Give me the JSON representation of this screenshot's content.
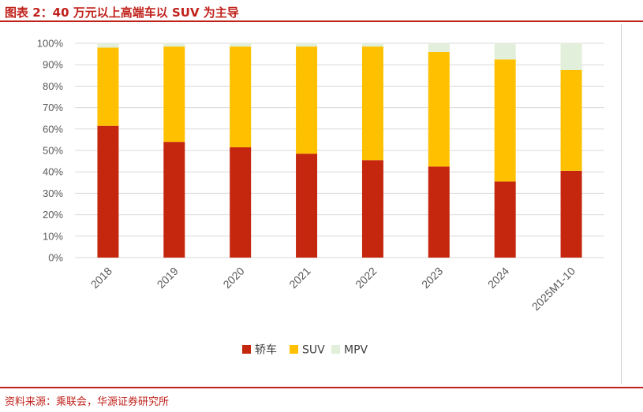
{
  "header": {
    "title": "图表 2：40 万元以上高端车以 SUV 为主导"
  },
  "footer": {
    "source": "资料来源：乘联会，华源证券研究所"
  },
  "chart_data": {
    "type": "bar",
    "stacked": true,
    "categories": [
      "2018",
      "2019",
      "2020",
      "2021",
      "2022",
      "2023",
      "2024",
      "2025M1-10"
    ],
    "series": [
      {
        "name": "轿车",
        "color": "#c5270e",
        "values": [
          61.5,
          54,
          51.5,
          48.5,
          45.5,
          42.5,
          35.5,
          40.5
        ]
      },
      {
        "name": "SUV",
        "color": "#ffc000",
        "values": [
          36.5,
          44.5,
          47,
          50,
          53,
          53.5,
          57,
          47
        ]
      },
      {
        "name": "MPV",
        "color": "#e2efda",
        "values": [
          2,
          1.5,
          1.5,
          1.5,
          1.5,
          4,
          7.5,
          12.5
        ]
      }
    ],
    "ylim": [
      0,
      100
    ],
    "yticks": [
      "0%",
      "10%",
      "20%",
      "30%",
      "40%",
      "50%",
      "60%",
      "70%",
      "80%",
      "90%",
      "100%"
    ],
    "grid": true,
    "legend_position": "bottom"
  }
}
